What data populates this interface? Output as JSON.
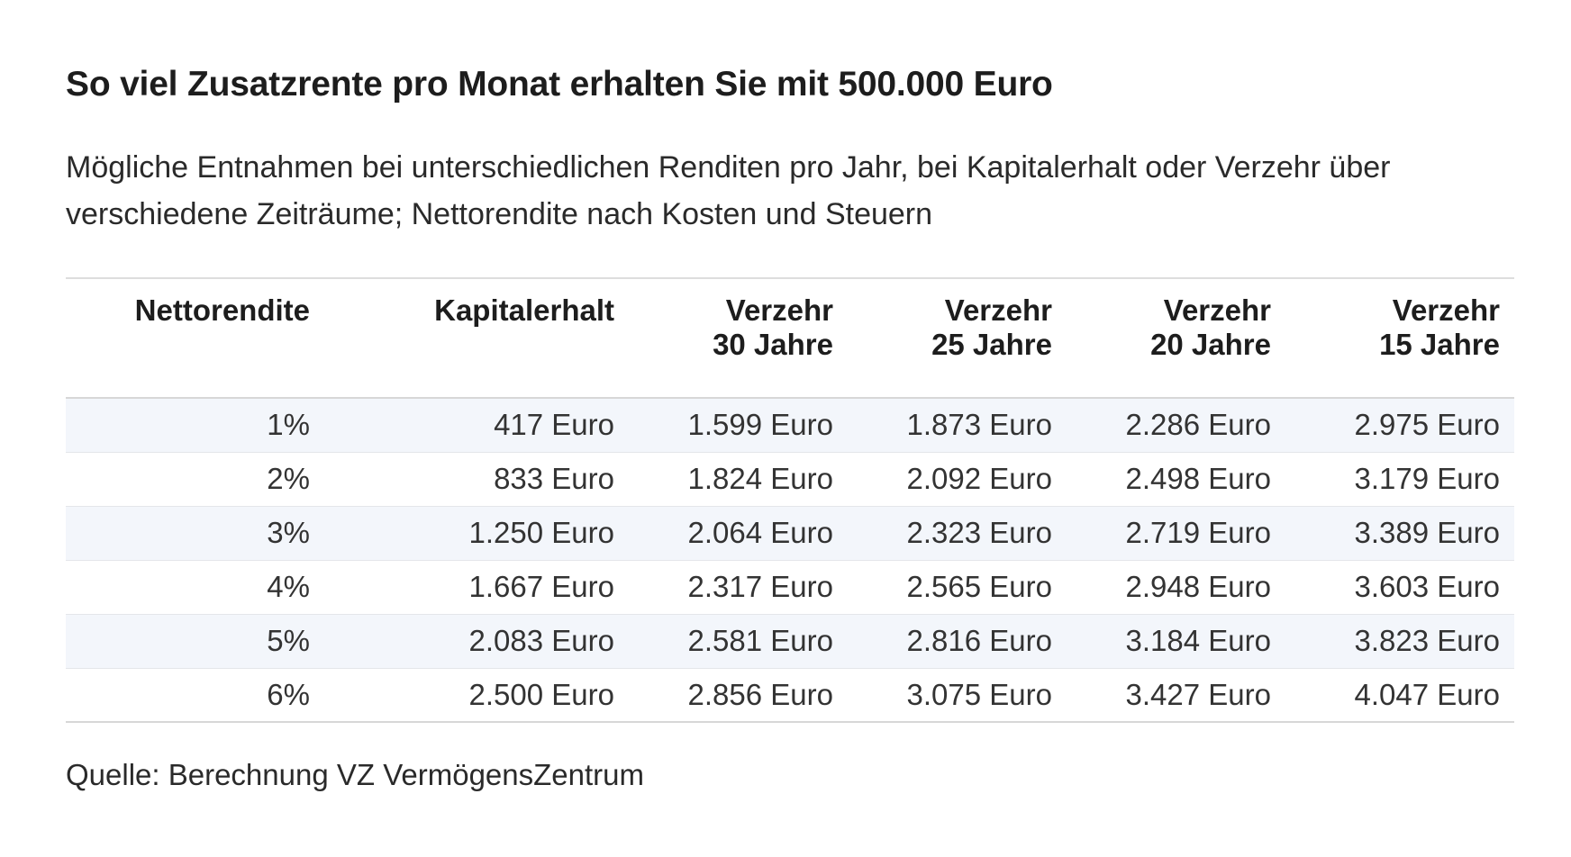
{
  "title": "So viel Zusatzrente pro Monat erhalten Sie mit 500.000 Euro",
  "subtitle": "Mögliche Entnahmen bei unterschiedlichen Renditen pro Jahr, bei Kapitalerhalt oder Verzehr über verschiedene Zeiträume; Nettorendite nach Kosten und Steuern",
  "source": "Quelle: Berechnung VZ VermögensZentrum",
  "chart_data": {
    "type": "table",
    "columns": [
      {
        "lines": [
          "Nettorendite"
        ]
      },
      {
        "lines": [
          "Kapitalerhalt"
        ]
      },
      {
        "lines": [
          "Verzehr",
          "30 Jahre"
        ]
      },
      {
        "lines": [
          "Verzehr",
          "25 Jahre"
        ]
      },
      {
        "lines": [
          "Verzehr",
          "20 Jahre"
        ]
      },
      {
        "lines": [
          "Verzehr",
          "15 Jahre"
        ]
      }
    ],
    "rows": [
      [
        "1%",
        "417 Euro",
        "1.599 Euro",
        "1.873 Euro",
        "2.286 Euro",
        "2.975 Euro"
      ],
      [
        "2%",
        "833 Euro",
        "1.824 Euro",
        "2.092 Euro",
        "2.498 Euro",
        "3.179 Euro"
      ],
      [
        "3%",
        "1.250 Euro",
        "2.064 Euro",
        "2.323 Euro",
        "2.719 Euro",
        "3.389 Euro"
      ],
      [
        "4%",
        "1.667 Euro",
        "2.317 Euro",
        "2.565 Euro",
        "2.948 Euro",
        "3.603 Euro"
      ],
      [
        "5%",
        "2.083 Euro",
        "2.581 Euro",
        "2.816 Euro",
        "3.184 Euro",
        "3.823 Euro"
      ],
      [
        "6%",
        "2.500 Euro",
        "2.856 Euro",
        "3.075 Euro",
        "3.427 Euro",
        "4.047 Euro"
      ]
    ],
    "colors": {
      "stripe": "#f3f6fb",
      "rule": "#d7d7d7",
      "text": "#1d1d1d"
    }
  }
}
